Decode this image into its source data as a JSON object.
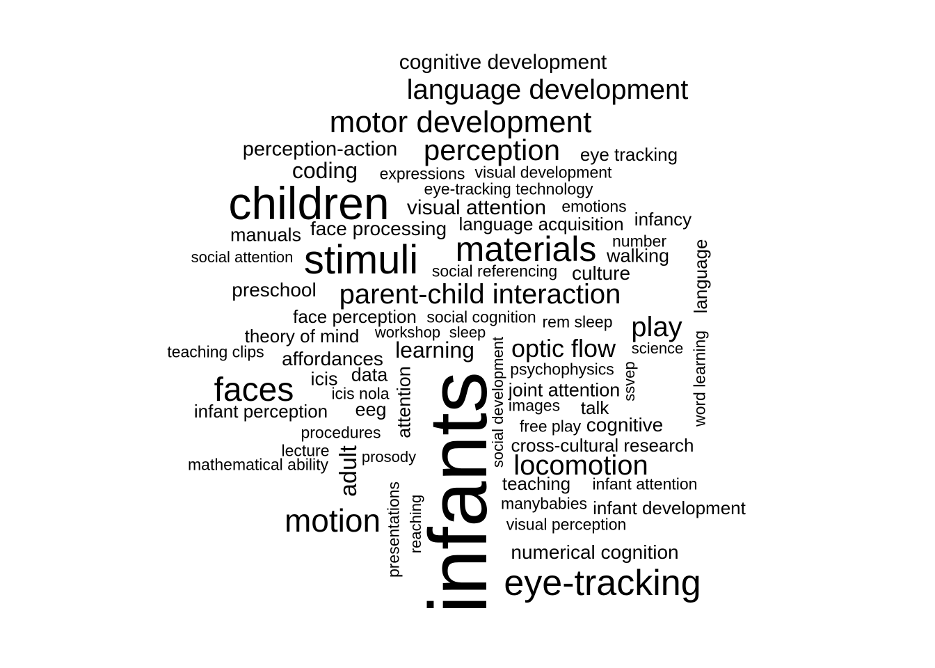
{
  "cloud": {
    "text_color": "#000000",
    "background": "#ffffff",
    "words": [
      "cognitive development",
      "language development",
      "motor development",
      "perception-action",
      "perception",
      "eye tracking",
      "coding",
      "expressions",
      "visual development",
      "eye-tracking technology",
      "children",
      "visual attention",
      "emotions",
      "infancy",
      "manuals",
      "face processing",
      "language acquisition",
      "social attention",
      "stimuli",
      "materials",
      "number",
      "walking",
      "language",
      "social referencing",
      "culture",
      "preschool",
      "parent-child interaction",
      "face perception",
      "social cognition",
      "rem sleep",
      "play",
      "theory of mind",
      "workshop",
      "sleep",
      "teaching clips",
      "learning",
      "optic flow",
      "science",
      "affordances",
      "psychophysics",
      "faces",
      "icis",
      "data",
      "joint attention",
      "icis nola",
      "ssvep",
      "word learning",
      "infant perception",
      "eeg",
      "images",
      "talk",
      "social development",
      "attention",
      "procedures",
      "free play",
      "cognitive",
      "lecture",
      "prosody",
      "cross-cultural research",
      "mathematical ability",
      "adult",
      "locomotion",
      "teaching",
      "infant attention",
      "presentations",
      "reaching",
      "manybabies",
      "infant development",
      "motion",
      "visual perception",
      "numerical cognition",
      "eye-tracking",
      "infants"
    ]
  }
}
